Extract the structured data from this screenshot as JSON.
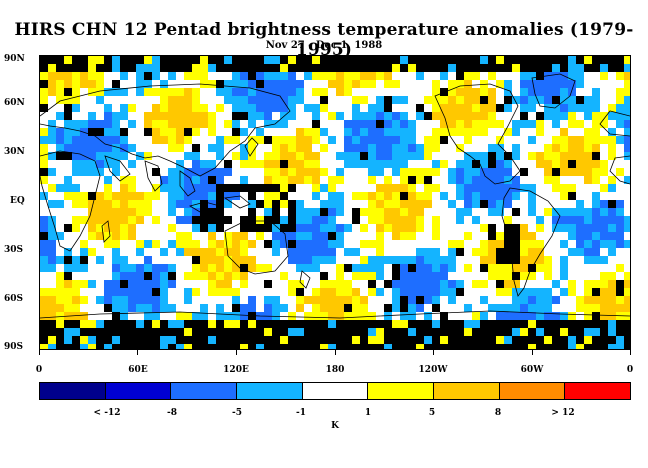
{
  "title": "HIRS CHN 12 Pentad brightness temperature anomalies (1979-1995)",
  "subtitle": "Nov 27 - Dec 1, 1988",
  "lat_labels": [
    "90N",
    "60N",
    "30N",
    "EQ",
    "30S",
    "60S",
    "90S"
  ],
  "lon_labels": [
    "0",
    "60E",
    "120E",
    "180",
    "120W",
    "60W",
    "0"
  ],
  "colorbar": {
    "colors": [
      "#00008c",
      "#0000d2",
      "#1e6eff",
      "#14b4ff",
      "#ffffff",
      "#ffff00",
      "#ffc800",
      "#ff8c00",
      "#ff0000"
    ],
    "tick_labels": [
      "< -12",
      "-8",
      "-5",
      "-1",
      "1",
      "5",
      "8",
      "> 12"
    ],
    "unit": "K"
  },
  "legend_colors": {
    "missing": "#000000",
    "coast": "#000000"
  }
}
